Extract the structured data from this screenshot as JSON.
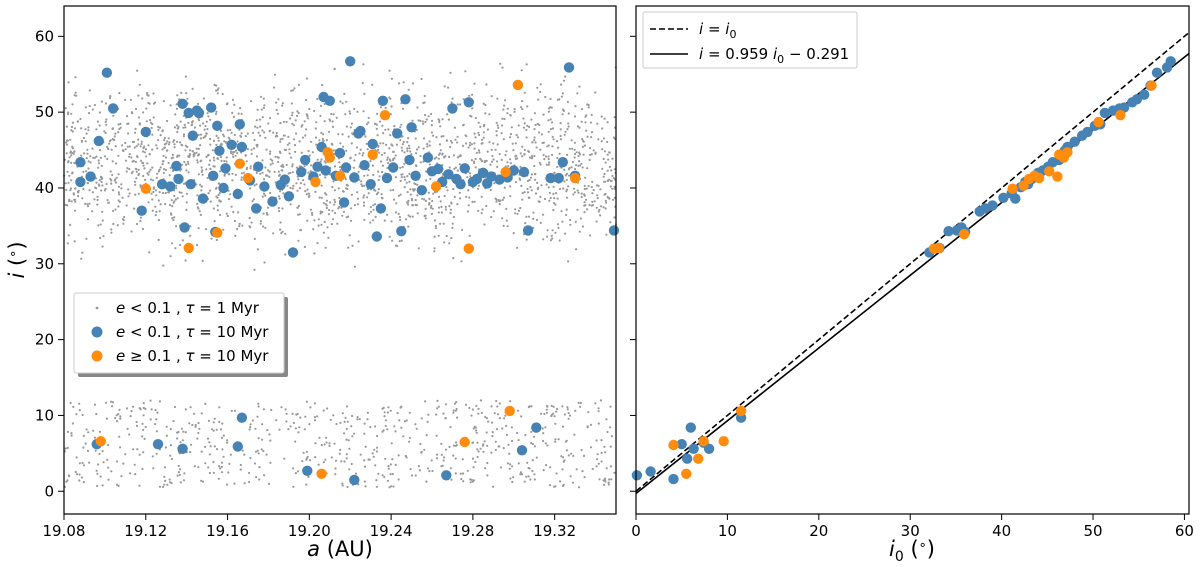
{
  "chart_data": [
    {
      "type": "scatter",
      "xlabel": "a (AU)",
      "ylabel": "i (°)",
      "xlim": [
        19.08,
        19.35
      ],
      "ylim": [
        -3,
        64
      ],
      "xticks": [
        19.08,
        19.12,
        19.16,
        19.2,
        19.24,
        19.28,
        19.32
      ],
      "xtick_labels": [
        "19.08",
        "19.12",
        "19.16",
        "19.20",
        "19.24",
        "19.28",
        "19.32"
      ],
      "yticks": [
        0,
        10,
        20,
        30,
        40,
        50,
        60
      ],
      "ytick_labels": [
        "0",
        "10",
        "20",
        "30",
        "40",
        "50",
        "60"
      ],
      "legend": [
        "e < 0.1 , τ = 1 Myr",
        "e < 0.1 , τ = 10 Myr",
        "e ≥ 0.1 , τ = 10 Myr"
      ],
      "background_series": {
        "name": "e < 0.1 , τ = 1 Myr",
        "color": "#999999",
        "bands": [
          {
            "y_range": [
              28,
              58
            ],
            "count": 2200
          },
          {
            "y_range": [
              0.5,
              12
            ],
            "count": 700
          }
        ]
      },
      "series": [
        {
          "name": "e < 0.1 , τ = 10 Myr",
          "color": "#4682b4",
          "points": [
            [
              19.088,
              43.4
            ],
            [
              19.088,
              40.8
            ],
            [
              19.093,
              41.5
            ],
            [
              19.097,
              46.2
            ],
            [
              19.101,
              55.2
            ],
            [
              19.104,
              50.5
            ],
            [
              19.118,
              37
            ],
            [
              19.12,
              47.4
            ],
            [
              19.128,
              40.5
            ],
            [
              19.132,
              40.2
            ],
            [
              19.135,
              42.9
            ],
            [
              19.136,
              41.2
            ],
            [
              19.138,
              51.1
            ],
            [
              19.139,
              34.8
            ],
            [
              19.141,
              49.9
            ],
            [
              19.142,
              40.5
            ],
            [
              19.143,
              46.9
            ],
            [
              19.145,
              50.2
            ],
            [
              19.146,
              49.9
            ],
            [
              19.148,
              38.6
            ],
            [
              19.152,
              50.6
            ],
            [
              19.153,
              41.6
            ],
            [
              19.154,
              34.2
            ],
            [
              19.155,
              48.2
            ],
            [
              19.156,
              44.9
            ],
            [
              19.158,
              40
            ],
            [
              19.159,
              42.6
            ],
            [
              19.162,
              45.7
            ],
            [
              19.165,
              39.2
            ],
            [
              19.166,
              48.4
            ],
            [
              19.167,
              45.4
            ],
            [
              19.171,
              41
            ],
            [
              19.174,
              37.3
            ],
            [
              19.175,
              42.8
            ],
            [
              19.178,
              40.2
            ],
            [
              19.182,
              38.2
            ],
            [
              19.186,
              40.4
            ],
            [
              19.188,
              41.1
            ],
            [
              19.19,
              38.9
            ],
            [
              19.192,
              31.5
            ],
            [
              19.196,
              42.1
            ],
            [
              19.198,
              43.7
            ],
            [
              19.202,
              41.5
            ],
            [
              19.204,
              42.8
            ],
            [
              19.206,
              45.4
            ],
            [
              19.207,
              52
            ],
            [
              19.208,
              42.3
            ],
            [
              19.21,
              51.5
            ],
            [
              19.213,
              41.6
            ],
            [
              19.215,
              44.6
            ],
            [
              19.217,
              38.1
            ],
            [
              19.218,
              42.7
            ],
            [
              19.22,
              56.7
            ],
            [
              19.222,
              41.4
            ],
            [
              19.224,
              47.2
            ],
            [
              19.225,
              47.5
            ],
            [
              19.227,
              43
            ],
            [
              19.23,
              40.5
            ],
            [
              19.231,
              45.8
            ],
            [
              19.233,
              33.6
            ],
            [
              19.235,
              37.3
            ],
            [
              19.236,
              51.5
            ],
            [
              19.238,
              41.3
            ],
            [
              19.241,
              42.7
            ],
            [
              19.243,
              47.2
            ],
            [
              19.245,
              34.3
            ],
            [
              19.247,
              51.7
            ],
            [
              19.249,
              43.7
            ],
            [
              19.25,
              48
            ],
            [
              19.252,
              41.6
            ],
            [
              19.255,
              39.7
            ],
            [
              19.258,
              44
            ],
            [
              19.26,
              42.2
            ],
            [
              19.263,
              42.5
            ],
            [
              19.265,
              40.8
            ],
            [
              19.268,
              41.8
            ],
            [
              19.27,
              50.5
            ],
            [
              19.272,
              41.2
            ],
            [
              19.274,
              40.5
            ],
            [
              19.276,
              42.6
            ],
            [
              19.278,
              51.3
            ],
            [
              19.28,
              40.8
            ],
            [
              19.282,
              41.2
            ],
            [
              19.285,
              42
            ],
            [
              19.287,
              40.6
            ],
            [
              19.289,
              41.5
            ],
            [
              19.293,
              41.1
            ],
            [
              19.297,
              41.4
            ],
            [
              19.3,
              42.3
            ],
            [
              19.305,
              42.1
            ],
            [
              19.307,
              34.4
            ],
            [
              19.318,
              41.3
            ],
            [
              19.322,
              41.3
            ],
            [
              19.324,
              43.4
            ],
            [
              19.327,
              55.9
            ],
            [
              19.33,
              41.6
            ],
            [
              19.349,
              34.4
            ],
            [
              19.096,
              6.2
            ],
            [
              19.126,
              6.2
            ],
            [
              19.138,
              5.6
            ],
            [
              19.165,
              5.9
            ],
            [
              19.167,
              9.7
            ],
            [
              19.199,
              2.7
            ],
            [
              19.222,
              1.5
            ],
            [
              19.267,
              2.1
            ],
            [
              19.304,
              5.4
            ],
            [
              19.311,
              8.4
            ]
          ]
        },
        {
          "name": "e ≥ 0.1 , τ = 10 Myr",
          "color": "#ff8c0d",
          "points": [
            [
              19.098,
              6.6
            ],
            [
              19.12,
              39.9
            ],
            [
              19.141,
              32.1
            ],
            [
              19.155,
              34.1
            ],
            [
              19.166,
              43.2
            ],
            [
              19.17,
              41.3
            ],
            [
              19.203,
              40.8
            ],
            [
              19.209,
              44.7
            ],
            [
              19.21,
              44
            ],
            [
              19.215,
              41.6
            ],
            [
              19.231,
              44.4
            ],
            [
              19.237,
              49.6
            ],
            [
              19.262,
              40.2
            ],
            [
              19.278,
              32
            ],
            [
              19.296,
              42.1
            ],
            [
              19.302,
              53.6
            ],
            [
              19.33,
              41.3
            ],
            [
              19.206,
              2.3
            ],
            [
              19.276,
              6.5
            ],
            [
              19.298,
              10.6
            ]
          ]
        }
      ]
    },
    {
      "type": "scatter",
      "xlabel": "i₀ (°)",
      "xlim": [
        0,
        60.5
      ],
      "ylim": [
        -3,
        64
      ],
      "xticks": [
        0,
        10,
        20,
        30,
        40,
        50,
        60
      ],
      "xtick_labels": [
        "0",
        "10",
        "20",
        "30",
        "40",
        "50",
        "60"
      ],
      "yticks": [
        0,
        10,
        20,
        30,
        40,
        50,
        60
      ],
      "legend": [
        "i = i₀",
        "i = 0.959 i₀ − 0.291"
      ],
      "lines": [
        {
          "name": "i = i₀",
          "style": "dashed",
          "slope": 1,
          "intercept": 0
        },
        {
          "name": "i = 0.959 i₀ − 0.291",
          "style": "solid",
          "slope": 0.959,
          "intercept": -0.291
        }
      ],
      "series": [
        {
          "name": "e < 0.1 , τ = 10 Myr",
          "color": "#4682b4",
          "points": [
            [
              0.1,
              2.1
            ],
            [
              1.6,
              2.6
            ],
            [
              4.1,
              1.6
            ],
            [
              5,
              6.2
            ],
            [
              5.6,
              4.3
            ],
            [
              6,
              8.4
            ],
            [
              6.3,
              5.6
            ],
            [
              7.4,
              6.4
            ],
            [
              8,
              5.6
            ],
            [
              11.5,
              9.7
            ],
            [
              32.1,
              31.5
            ],
            [
              33.2,
              32.1
            ],
            [
              34.2,
              34.3
            ],
            [
              35.1,
              34.4
            ],
            [
              35.6,
              34.8
            ],
            [
              36,
              34.2
            ],
            [
              37.6,
              36.9
            ],
            [
              38.2,
              37.3
            ],
            [
              39,
              37.7
            ],
            [
              40.2,
              38.7
            ],
            [
              41.1,
              39.3
            ],
            [
              41.5,
              38.6
            ],
            [
              42.1,
              40.1
            ],
            [
              42.6,
              40.8
            ],
            [
              42.9,
              40.5
            ],
            [
              43.3,
              41.2
            ],
            [
              43.7,
              41.5
            ],
            [
              44,
              42
            ],
            [
              44.5,
              42.3
            ],
            [
              45.1,
              42.8
            ],
            [
              45.6,
              43.4
            ],
            [
              46.3,
              43.7
            ],
            [
              46.9,
              44.9
            ],
            [
              47.2,
              45.4
            ],
            [
              48,
              46.1
            ],
            [
              48.8,
              46.9
            ],
            [
              49.4,
              47.4
            ],
            [
              50.2,
              48.2
            ],
            [
              50.8,
              48.4
            ],
            [
              51.3,
              49.9
            ],
            [
              52.2,
              50.2
            ],
            [
              52.9,
              50.5
            ],
            [
              53.4,
              50.6
            ],
            [
              54.3,
              51.3
            ],
            [
              54.8,
              51.7
            ],
            [
              55.6,
              52.3
            ],
            [
              56.3,
              53.5
            ],
            [
              57,
              55.2
            ],
            [
              58.1,
              55.9
            ],
            [
              58.5,
              56.7
            ]
          ]
        },
        {
          "name": "e ≥ 0.1 , τ = 10 Myr",
          "color": "#ff8c0d",
          "points": [
            [
              4.1,
              6.1
            ],
            [
              5.5,
              2.3
            ],
            [
              6.8,
              4.3
            ],
            [
              7.4,
              6.6
            ],
            [
              9.6,
              6.6
            ],
            [
              11.5,
              10.6
            ],
            [
              32.6,
              32
            ],
            [
              33.1,
              32.1
            ],
            [
              35.9,
              33.9
            ],
            [
              41.2,
              39.9
            ],
            [
              42.4,
              40.3
            ],
            [
              43,
              41.2
            ],
            [
              43.6,
              41.6
            ],
            [
              44.1,
              41.3
            ],
            [
              45.2,
              42.2
            ],
            [
              46.1,
              41.5
            ],
            [
              46.3,
              44.4
            ],
            [
              46.8,
              44
            ],
            [
              47.2,
              44.7
            ],
            [
              50.6,
              48.7
            ],
            [
              53,
              49.6
            ],
            [
              56.4,
              53.5
            ]
          ]
        }
      ]
    }
  ]
}
